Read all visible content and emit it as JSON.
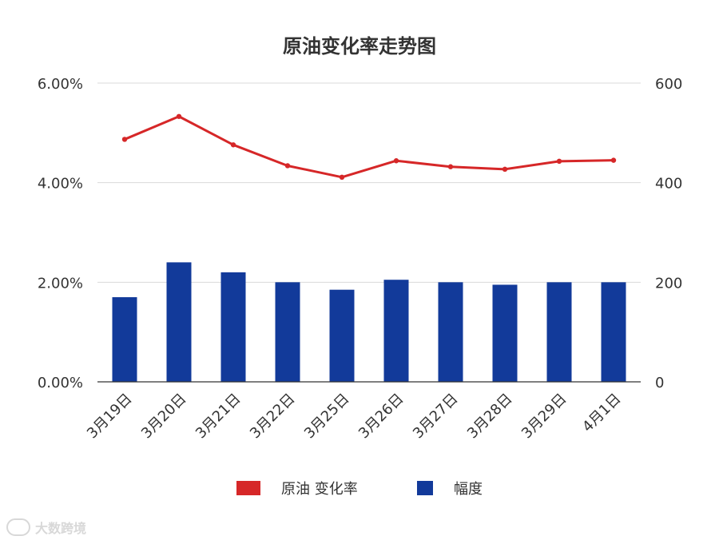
{
  "chart_data": {
    "type": "bar+line",
    "title": "原油变化率走势图",
    "categories": [
      "3月19日",
      "3月20日",
      "3月21日",
      "3月22日",
      "3月25日",
      "3月26日",
      "3月27日",
      "3月28日",
      "3月29日",
      "4月1日"
    ],
    "series": [
      {
        "name": "原油 变化率",
        "type": "line",
        "axis": "left",
        "color": "#d62728",
        "values": [
          4.87,
          5.33,
          4.76,
          4.34,
          4.11,
          4.44,
          4.32,
          4.27,
          4.43,
          4.45
        ]
      },
      {
        "name": "幅度",
        "type": "bar",
        "axis": "right",
        "color": "#123a9a",
        "values": [
          170,
          240,
          220,
          200,
          185,
          205,
          200,
          195,
          200,
          200
        ]
      }
    ],
    "y_left": {
      "min": 0,
      "max": 6,
      "ticks": [
        "0.00%",
        "2.00%",
        "4.00%",
        "6.00%"
      ]
    },
    "y_right": {
      "min": 0,
      "max": 600,
      "ticks": [
        "0",
        "200",
        "400",
        "600"
      ]
    },
    "grid": true,
    "legend_position": "bottom"
  },
  "watermark": {
    "text": "大数跨境"
  }
}
